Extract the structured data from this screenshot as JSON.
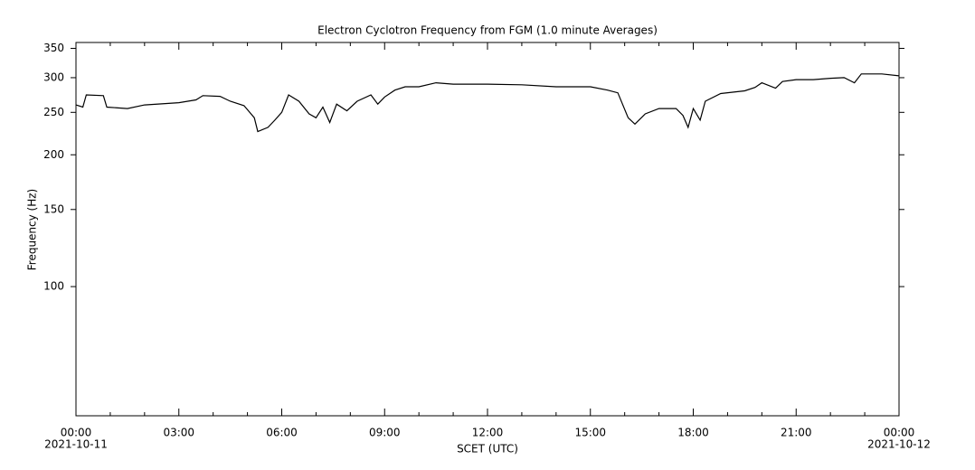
{
  "chart_data": {
    "type": "line",
    "title": "Electron Cyclotron Frequency from FGM (1.0 minute Averages)",
    "xlabel": "SCET (UTC)",
    "ylabel": "Frequency (Hz)",
    "log_y": true,
    "xlim": [
      0,
      24
    ],
    "ylim": [
      50.7,
      361
    ],
    "xticks": [
      {
        "value": 0,
        "label": "00:00"
      },
      {
        "value": 3,
        "label": "03:00"
      },
      {
        "value": 6,
        "label": "06:00"
      },
      {
        "value": 9,
        "label": "09:00"
      },
      {
        "value": 12,
        "label": "12:00"
      },
      {
        "value": 15,
        "label": "15:00"
      },
      {
        "value": 18,
        "label": "18:00"
      },
      {
        "value": 21,
        "label": "21:00"
      },
      {
        "value": 24,
        "label": "00:00"
      }
    ],
    "xminorticks": [
      1,
      2,
      4,
      5,
      7,
      8,
      10,
      11,
      13,
      14,
      16,
      17,
      19,
      20,
      22,
      23
    ],
    "x_date_labels": [
      {
        "value": 0,
        "label": "2021-10-11"
      },
      {
        "value": 24,
        "label": "2021-10-12"
      }
    ],
    "yticks": [
      100,
      150,
      200,
      250,
      300,
      350
    ],
    "x": [
      0,
      0.2,
      0.3,
      0.8,
      0.9,
      1.5,
      2,
      3,
      3.5,
      3.7,
      4.2,
      4.5,
      4.9,
      5.2,
      5.3,
      5.6,
      5.8,
      6.0,
      6.2,
      6.5,
      6.8,
      7.0,
      7.2,
      7.4,
      7.6,
      7.9,
      8.2,
      8.6,
      8.8,
      9.0,
      9.3,
      9.6,
      10.0,
      10.5,
      11,
      12,
      13,
      14,
      15,
      15.5,
      15.8,
      16.1,
      16.3,
      16.6,
      17,
      17.5,
      17.7,
      17.85,
      18.0,
      18.2,
      18.35,
      18.8,
      19.5,
      19.8,
      20.0,
      20.4,
      20.6,
      21.0,
      21.5,
      22,
      22.4,
      22.7,
      22.9,
      23.5,
      24
    ],
    "series": [
      {
        "color": "#000000",
        "values": [
          260,
          257,
          274,
          273,
          257,
          255,
          260,
          263,
          267,
          273,
          272,
          265,
          259,
          243,
          226,
          231,
          240,
          250,
          274,
          265,
          248,
          243,
          257,
          237,
          261,
          252,
          265,
          274,
          261,
          271,
          281,
          286,
          286,
          292,
          290,
          290,
          289,
          286,
          286,
          281,
          277,
          243,
          235,
          248,
          255,
          255,
          246,
          231,
          255,
          240,
          265,
          276,
          280,
          285,
          292,
          284,
          294,
          297,
          297,
          299,
          300,
          292,
          306,
          306,
          303
        ]
      }
    ]
  }
}
